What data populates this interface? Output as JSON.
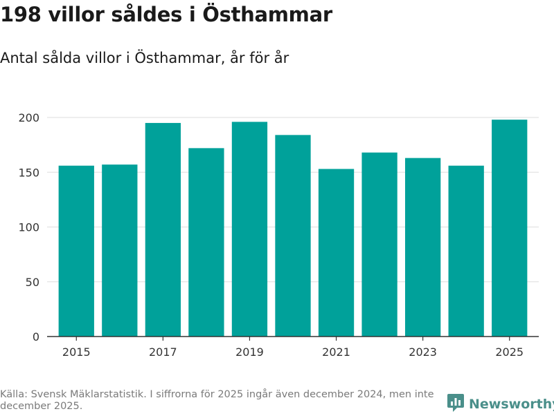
{
  "title": "198 villor såldes i Östhammar",
  "subtitle": "Antal sålda villor i Östhammar, år för år",
  "chart_data": {
    "type": "bar",
    "categories": [
      "2015",
      "2016",
      "2017",
      "2018",
      "2019",
      "2020",
      "2021",
      "2022",
      "2023",
      "2024",
      "2025"
    ],
    "values": [
      156,
      157,
      195,
      172,
      196,
      184,
      153,
      168,
      163,
      156,
      198
    ],
    "xtick_labels": [
      "2015",
      "2017",
      "2019",
      "2021",
      "2023",
      "2025"
    ],
    "yticks": [
      0,
      50,
      100,
      150,
      200
    ],
    "ylim": [
      0,
      210
    ],
    "bar_color": "#00a19a",
    "grid": true,
    "xlabel": "",
    "ylabel": ""
  },
  "footer": {
    "source": "Källa: Svensk Mäklarstatistik. I siffrorna för 2025 ingår även december 2024, men inte december 2025.",
    "brand": "Newsworthy",
    "brand_icon": "newsworthy-logo-icon",
    "brand_color": "#4a8f8a"
  }
}
